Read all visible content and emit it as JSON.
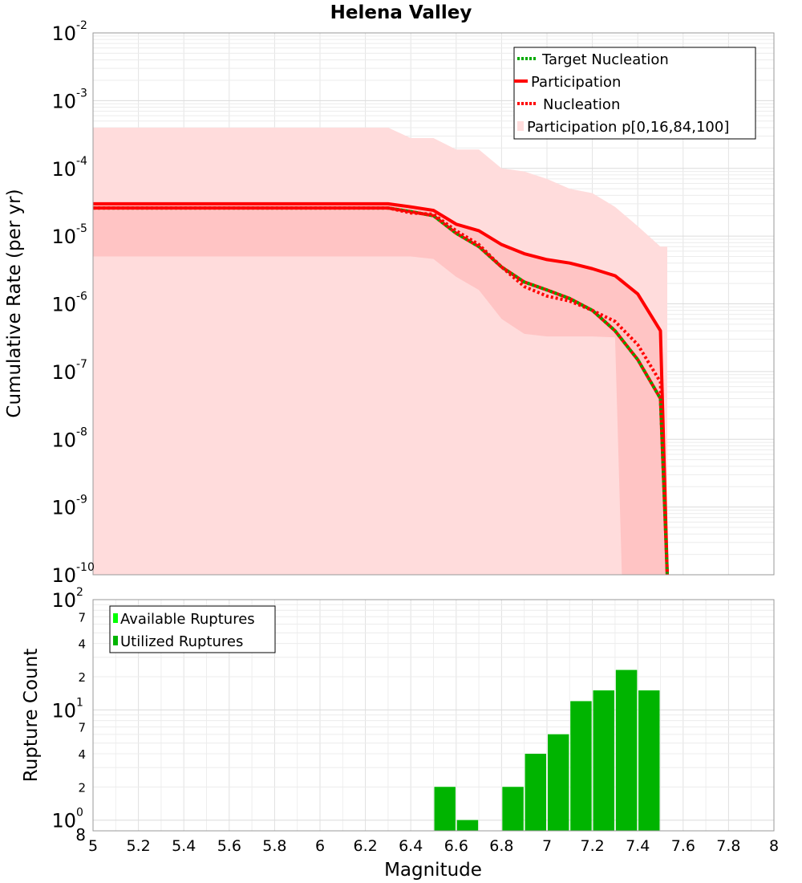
{
  "chart_data": [
    {
      "type": "line",
      "title": "Helena Valley",
      "xlabel": "Magnitude",
      "ylabel": "Cumulative Rate (per yr)",
      "xlim": [
        5,
        8
      ],
      "ylim": [
        1e-10,
        0.01
      ],
      "yscale": "log",
      "grid": true,
      "legend_position": "top-right",
      "y_tick_labels": [
        {
          "value": 0.01,
          "base": "10",
          "exp": "-2"
        },
        {
          "value": 0.001,
          "base": "10",
          "exp": "-3"
        },
        {
          "value": 0.0001,
          "base": "10",
          "exp": "-4"
        },
        {
          "value": 1e-05,
          "base": "10",
          "exp": "-5"
        },
        {
          "value": 1e-06,
          "base": "10",
          "exp": "-6"
        },
        {
          "value": 1e-07,
          "base": "10",
          "exp": "-7"
        },
        {
          "value": 1e-08,
          "base": "10",
          "exp": "-8"
        },
        {
          "value": 1e-09,
          "base": "10",
          "exp": "-9"
        },
        {
          "value": 1e-10,
          "base": "10",
          "exp": "-10"
        }
      ],
      "series": [
        {
          "name": "Target Nucleation",
          "color": "#00aa00",
          "line_style": "dotted-with-red",
          "x": [
            5.0,
            6.3,
            6.4,
            6.5,
            6.6,
            6.7,
            6.8,
            6.9,
            7.0,
            7.1,
            7.2,
            7.3,
            7.4,
            7.5,
            7.53
          ],
          "y": [
            2.6e-05,
            2.6e-05,
            2.3e-05,
            2e-05,
            1.1e-05,
            7e-06,
            3.5e-06,
            2.1e-06,
            1.6e-06,
            1.2e-06,
            8e-07,
            4e-07,
            1.5e-07,
            4e-08,
            1e-10
          ]
        },
        {
          "name": "Participation",
          "color": "#ff0000",
          "line_style": "solid",
          "x": [
            5.0,
            6.3,
            6.4,
            6.5,
            6.6,
            6.7,
            6.8,
            6.9,
            7.0,
            7.1,
            7.2,
            7.3,
            7.4,
            7.5,
            7.53
          ],
          "y": [
            3e-05,
            3e-05,
            2.7e-05,
            2.4e-05,
            1.5e-05,
            1.2e-05,
            7.5e-06,
            5.5e-06,
            4.5e-06,
            4e-06,
            3.3e-06,
            2.6e-06,
            1.4e-06,
            4e-07,
            1e-10
          ]
        },
        {
          "name": "Nucleation",
          "color": "#ff0000",
          "line_style": "dotted",
          "x": [
            5.0,
            6.3,
            6.4,
            6.5,
            6.6,
            6.7,
            6.8,
            6.9,
            7.0,
            7.1,
            7.2,
            7.3,
            7.4,
            7.5,
            7.53
          ],
          "y": [
            2.6e-05,
            2.6e-05,
            2.2e-05,
            2.1e-05,
            1.2e-05,
            7.5e-06,
            3.5e-06,
            1.8e-06,
            1.3e-06,
            1.1e-06,
            8e-07,
            5.5e-07,
            2.5e-07,
            7e-08,
            1e-10
          ]
        }
      ],
      "bands": [
        {
          "name": "Participation p[0,16,84,100]",
          "outer": {
            "color": "#ffdcdc",
            "x": [
              5.0,
              6.3,
              6.4,
              6.5,
              6.6,
              6.7,
              6.8,
              6.9,
              7.0,
              7.1,
              7.2,
              7.3,
              7.4,
              7.5,
              7.53
            ],
            "upper": [
              0.0004,
              0.0004,
              0.00028,
              0.00028,
              0.00019,
              0.00019,
              0.0001,
              9e-05,
              7e-05,
              5e-05,
              4.3e-05,
              2.7e-05,
              1.4e-05,
              7e-06,
              7e-06
            ],
            "lower": [
              1e-10,
              1e-10,
              1e-10,
              1e-10,
              1e-10,
              1e-10,
              1e-10,
              1e-10,
              1e-10,
              1e-10,
              1e-10,
              1e-10,
              1e-10,
              1e-10,
              1e-10
            ]
          },
          "inner": {
            "color": "#ffc4c4",
            "x": [
              5.0,
              6.3,
              6.4,
              6.5,
              6.6,
              6.7,
              6.8,
              6.9,
              7.0,
              7.1,
              7.2,
              7.3,
              7.33,
              7.4,
              7.5,
              7.53
            ],
            "upper": [
              3e-05,
              3e-05,
              2.7e-05,
              2.4e-05,
              1.5e-05,
              1.2e-05,
              7.5e-06,
              5.5e-06,
              4.5e-06,
              4e-06,
              3.3e-06,
              2.6e-06,
              2.4e-06,
              1.4e-06,
              4e-07,
              1e-10
            ],
            "lower": [
              5e-06,
              5e-06,
              5e-06,
              4.6e-06,
              2.5e-06,
              1.6e-06,
              6e-07,
              3.6e-07,
              3.3e-07,
              3.3e-07,
              3.3e-07,
              3.2e-07,
              1e-10,
              1e-10,
              1e-10,
              1e-10
            ]
          }
        }
      ]
    },
    {
      "type": "bar",
      "xlabel": "Magnitude",
      "ylabel": "Rupture Count",
      "xlim": [
        5,
        8
      ],
      "x_ticks": [
        "5",
        "5.2",
        "5.4",
        "5.6",
        "5.8",
        "6",
        "6.2",
        "6.4",
        "6.6",
        "6.8",
        "7",
        "7.2",
        "7.4",
        "7.6",
        "7.8",
        "8"
      ],
      "ylim": [
        0.8,
        100
      ],
      "yscale": "log",
      "grid": true,
      "legend_position": "top-left",
      "y_tick_labels": [
        {
          "value": 100,
          "base": "10",
          "exp": "2"
        },
        {
          "value": 70,
          "minor": "7"
        },
        {
          "value": 40,
          "minor": "4"
        },
        {
          "value": 20,
          "minor": "2"
        },
        {
          "value": 10,
          "base": "10",
          "exp": "1"
        },
        {
          "value": 7,
          "minor": "7"
        },
        {
          "value": 4,
          "minor": "4"
        },
        {
          "value": 2,
          "minor": "2"
        },
        {
          "value": 1,
          "base": "10",
          "exp": "0"
        },
        {
          "value": 0.8,
          "minor": "8"
        }
      ],
      "bin_width": 0.1,
      "series": [
        {
          "name": "Available Ruptures",
          "color": "#00ff00",
          "x": [
            6.55,
            6.65,
            6.85,
            6.95,
            7.05,
            7.15,
            7.25,
            7.35,
            7.45
          ],
          "values": [
            2,
            1,
            2,
            4,
            6,
            12,
            15,
            23,
            15
          ]
        },
        {
          "name": "Utilized Ruptures",
          "color": "#00b400",
          "x": [
            6.55,
            6.65,
            6.85,
            6.95,
            7.05,
            7.15,
            7.25,
            7.35,
            7.45
          ],
          "values": [
            2,
            1,
            2,
            4,
            6,
            12,
            15,
            23,
            15
          ]
        }
      ]
    }
  ]
}
